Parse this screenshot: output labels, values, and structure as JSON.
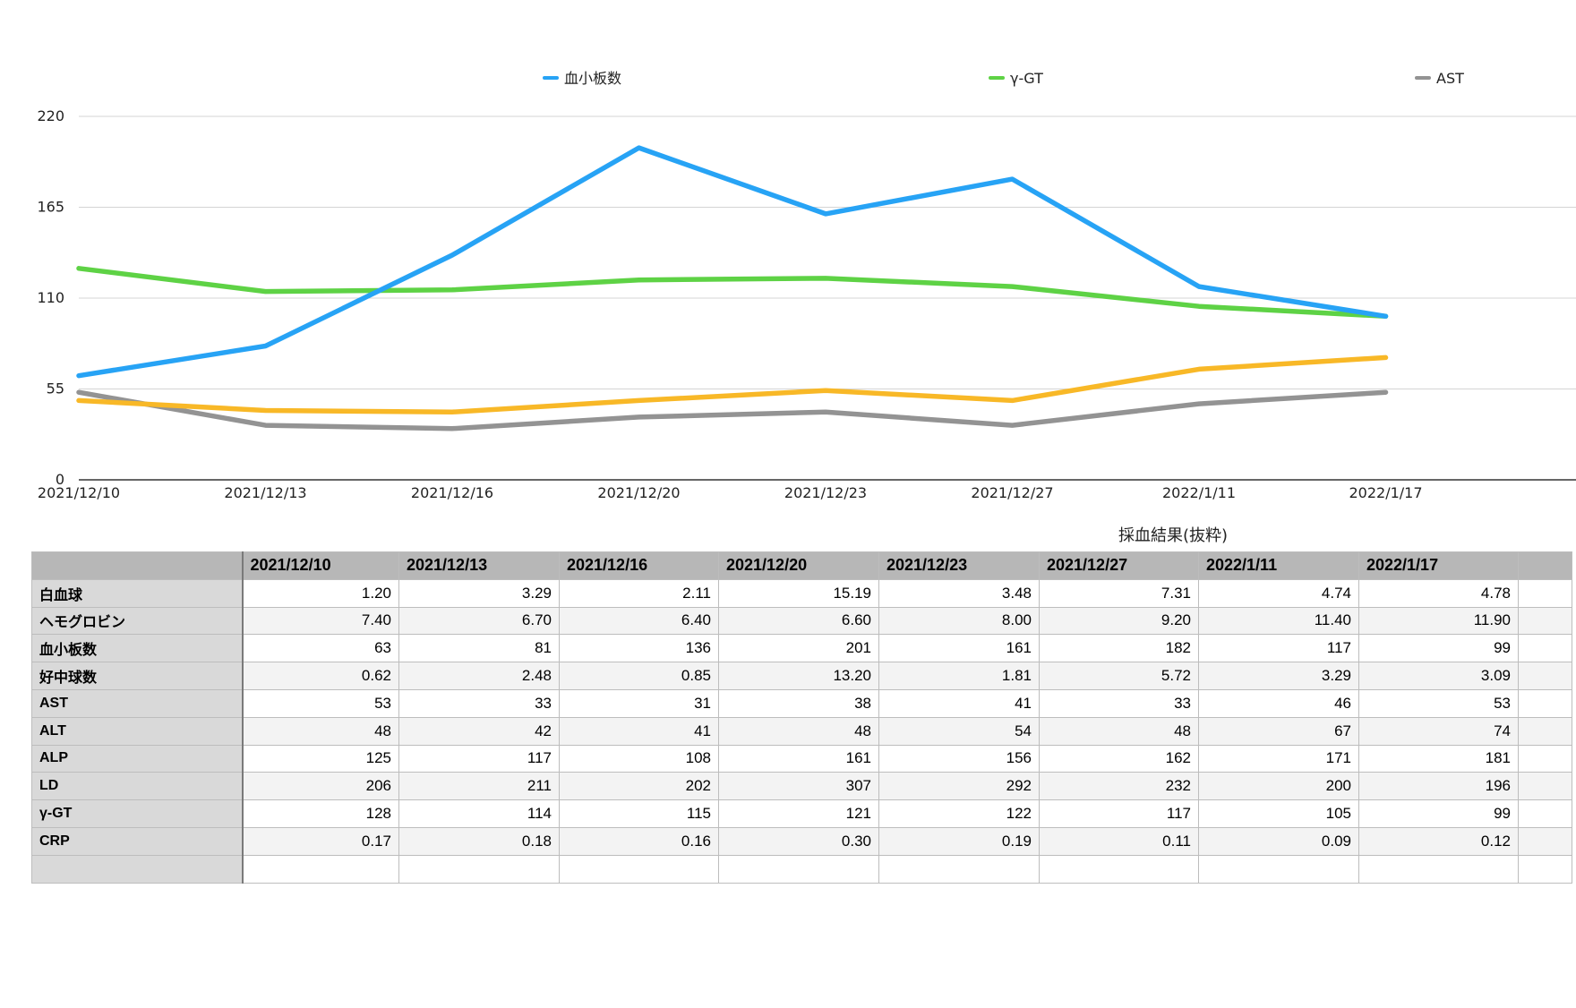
{
  "chart_data": {
    "type": "line",
    "categories": [
      "2021/12/10",
      "2021/12/13",
      "2021/12/16",
      "2021/12/20",
      "2021/12/23",
      "2021/12/27",
      "2022/1/11",
      "2022/1/17"
    ],
    "ylim": [
      0,
      220
    ],
    "yticks": [
      "0",
      "55",
      "110",
      "165",
      "220"
    ],
    "grid": true,
    "legend_position": "top",
    "series": [
      {
        "name": "血小板数",
        "color": "#27a3f5",
        "values": [
          63,
          81,
          136,
          201,
          161,
          182,
          117,
          99
        ],
        "in_legend": true
      },
      {
        "name": "γ-GT",
        "color": "#5ed245",
        "values": [
          128,
          114,
          115,
          121,
          122,
          117,
          105,
          99
        ],
        "in_legend": true
      },
      {
        "name": "AST",
        "color": "#939393",
        "values": [
          53,
          33,
          31,
          38,
          41,
          33,
          46,
          53
        ],
        "in_legend": true
      },
      {
        "name": "ALT",
        "color": "#f8b827",
        "values": [
          48,
          42,
          41,
          48,
          54,
          48,
          67,
          74
        ],
        "in_legend": false
      }
    ]
  },
  "table": {
    "caption": "採血結果(抜粋)",
    "headers": [
      "2021/12/10",
      "2021/12/13",
      "2021/12/16",
      "2021/12/20",
      "2021/12/23",
      "2021/12/27",
      "2022/1/11",
      "2022/1/17"
    ],
    "rows": [
      {
        "label": "白血球",
        "values": [
          "1.20",
          "3.29",
          "2.11",
          "15.19",
          "3.48",
          "7.31",
          "4.74",
          "4.78"
        ]
      },
      {
        "label": "ヘモグロビン",
        "values": [
          "7.40",
          "6.70",
          "6.40",
          "6.60",
          "8.00",
          "9.20",
          "11.40",
          "11.90"
        ]
      },
      {
        "label": "血小板数",
        "values": [
          "63",
          "81",
          "136",
          "201",
          "161",
          "182",
          "117",
          "99"
        ]
      },
      {
        "label": "好中球数",
        "values": [
          "0.62",
          "2.48",
          "0.85",
          "13.20",
          "1.81",
          "5.72",
          "3.29",
          "3.09"
        ]
      },
      {
        "label": "AST",
        "values": [
          "53",
          "33",
          "31",
          "38",
          "41",
          "33",
          "46",
          "53"
        ]
      },
      {
        "label": "ALT",
        "values": [
          "48",
          "42",
          "41",
          "48",
          "54",
          "48",
          "67",
          "74"
        ]
      },
      {
        "label": "ALP",
        "values": [
          "125",
          "117",
          "108",
          "161",
          "156",
          "162",
          "171",
          "181"
        ]
      },
      {
        "label": "LD",
        "values": [
          "206",
          "211",
          "202",
          "307",
          "292",
          "232",
          "200",
          "196"
        ]
      },
      {
        "label": "γ-GT",
        "values": [
          "128",
          "114",
          "115",
          "121",
          "122",
          "117",
          "105",
          "99"
        ]
      },
      {
        "label": "CRP",
        "values": [
          "0.17",
          "0.18",
          "0.16",
          "0.30",
          "0.19",
          "0.11",
          "0.09",
          "0.12"
        ]
      },
      {
        "label": "",
        "values": [
          "",
          "",
          "",
          "",
          "",
          "",
          "",
          ""
        ]
      }
    ]
  }
}
